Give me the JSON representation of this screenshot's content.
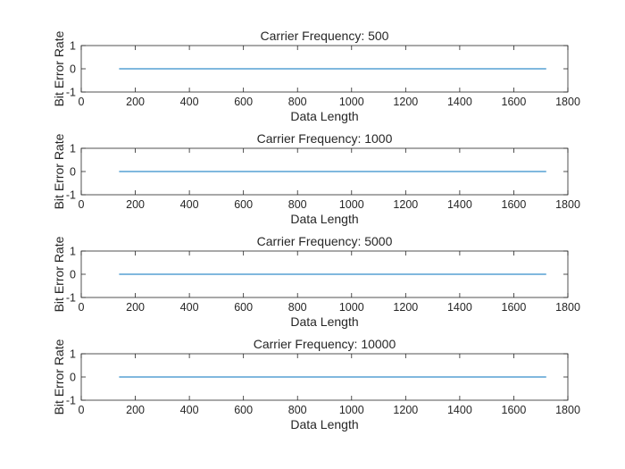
{
  "chart_data": [
    {
      "type": "line",
      "title": "Carrier Frequency: 500",
      "xlabel": "Data Length",
      "ylabel": "Bit Error Rate",
      "xlim": [
        0,
        1800
      ],
      "ylim": [
        -1,
        1
      ],
      "xticks": [
        0,
        200,
        400,
        600,
        800,
        1000,
        1200,
        1400,
        1600,
        1800
      ],
      "yticks": [
        -1,
        0,
        1
      ],
      "grid": false,
      "series": [
        {
          "color": "#0072BD",
          "x": [
            140,
            1720
          ],
          "y": [
            0,
            0
          ]
        }
      ]
    },
    {
      "type": "line",
      "title": "Carrier Frequency: 1000",
      "xlabel": "Data Length",
      "ylabel": "Bit Error Rate",
      "xlim": [
        0,
        1800
      ],
      "ylim": [
        -1,
        1
      ],
      "xticks": [
        0,
        200,
        400,
        600,
        800,
        1000,
        1200,
        1400,
        1600,
        1800
      ],
      "yticks": [
        -1,
        0,
        1
      ],
      "grid": false,
      "series": [
        {
          "color": "#0072BD",
          "x": [
            140,
            1720
          ],
          "y": [
            0,
            0
          ]
        }
      ]
    },
    {
      "type": "line",
      "title": "Carrier Frequency: 5000",
      "xlabel": "Data Length",
      "ylabel": "Bit Error Rate",
      "xlim": [
        0,
        1800
      ],
      "ylim": [
        -1,
        1
      ],
      "xticks": [
        0,
        200,
        400,
        600,
        800,
        1000,
        1200,
        1400,
        1600,
        1800
      ],
      "yticks": [
        -1,
        0,
        1
      ],
      "grid": false,
      "series": [
        {
          "color": "#0072BD",
          "x": [
            140,
            1720
          ],
          "y": [
            0,
            0
          ]
        }
      ]
    },
    {
      "type": "line",
      "title": "Carrier Frequency: 10000",
      "xlabel": "Data Length",
      "ylabel": "Bit Error Rate",
      "xlim": [
        0,
        1800
      ],
      "ylim": [
        -1,
        1
      ],
      "xticks": [
        0,
        200,
        400,
        600,
        800,
        1000,
        1200,
        1400,
        1600,
        1800
      ],
      "yticks": [
        -1,
        0,
        1
      ],
      "grid": false,
      "series": [
        {
          "color": "#0072BD",
          "x": [
            140,
            1720
          ],
          "y": [
            0,
            0
          ]
        }
      ]
    }
  ]
}
